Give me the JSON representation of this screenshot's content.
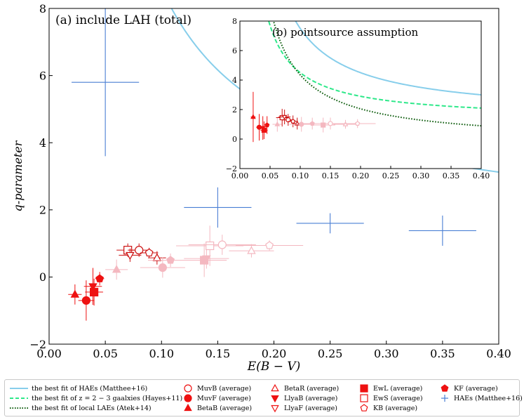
{
  "chart_data": [
    {
      "type": "scatter",
      "panel": "main",
      "title": "(a) include LAH (total)",
      "xlabel": "E(B − V)",
      "ylabel": "q-parameter",
      "xlim": [
        0.0,
        0.4
      ],
      "ylim": [
        -2,
        8
      ],
      "xticks": [
        "0.00",
        "0.05",
        "0.10",
        "0.15",
        "0.20",
        "0.25",
        "0.30",
        "0.35",
        "0.40"
      ],
      "yticks": [
        "−2",
        "0",
        "2",
        "4",
        "6",
        "8"
      ],
      "curves": [
        {
          "name": "HAE best fit",
          "color": "#87ceeb",
          "style": "solid",
          "a": 0.73,
          "c": 1.3
        }
      ],
      "haes": [
        {
          "x": 0.05,
          "y": 5.8,
          "xerr": 0.03,
          "yerr": 2.2
        },
        {
          "x": 0.15,
          "y": 2.07,
          "xerr": 0.03,
          "yerr": 0.6
        },
        {
          "x": 0.25,
          "y": 1.6,
          "xerr": 0.03,
          "yerr": 0.3
        },
        {
          "x": 0.35,
          "y": 1.38,
          "xerr": 0.03,
          "yerr": 0.45
        }
      ],
      "points": [
        {
          "x": 0.023,
          "y": -0.52,
          "xerr": 0.006,
          "yerr": 0.3,
          "marker": "triangle",
          "fill": true,
          "color": "#ee1111"
        },
        {
          "x": 0.033,
          "y": -0.7,
          "xerr": 0.007,
          "yerr": 0.6,
          "marker": "circle",
          "fill": true,
          "color": "#ee1111"
        },
        {
          "x": 0.039,
          "y": -0.28,
          "xerr": 0.008,
          "yerr": 0.55,
          "marker": "triangle-down",
          "fill": true,
          "color": "#ee1111"
        },
        {
          "x": 0.04,
          "y": -0.45,
          "xerr": 0.008,
          "yerr": 0.4,
          "marker": "square",
          "fill": true,
          "color": "#ee1111"
        },
        {
          "x": 0.045,
          "y": -0.05,
          "xerr": 0.004,
          "yerr": 0.2,
          "marker": "pentagon",
          "fill": true,
          "color": "#ee1111"
        },
        {
          "x": 0.06,
          "y": 0.22,
          "xerr": 0.01,
          "yerr": 0.3,
          "marker": "triangle",
          "fill": true,
          "color": "#f4b8c0"
        },
        {
          "x": 0.07,
          "y": 0.8,
          "xerr": 0.01,
          "yerr": 0.2,
          "marker": "square",
          "fill": false,
          "color": "#cc1111"
        },
        {
          "x": 0.072,
          "y": 0.65,
          "xerr": 0.01,
          "yerr": 0.2,
          "marker": "triangle-down",
          "fill": false,
          "color": "#cc1111"
        },
        {
          "x": 0.08,
          "y": 0.8,
          "xerr": 0.01,
          "yerr": 0.2,
          "marker": "circle",
          "fill": false,
          "color": "#cc1111"
        },
        {
          "x": 0.089,
          "y": 0.72,
          "xerr": 0.008,
          "yerr": 0.15,
          "marker": "pentagon",
          "fill": false,
          "color": "#cc1111"
        },
        {
          "x": 0.096,
          "y": 0.57,
          "xerr": 0.008,
          "yerr": 0.2,
          "marker": "triangle",
          "fill": false,
          "color": "#cc1111"
        },
        {
          "x": 0.101,
          "y": 0.28,
          "xerr": 0.02,
          "yerr": 0.3,
          "marker": "circle",
          "fill": true,
          "color": "#f4b8c0"
        },
        {
          "x": 0.108,
          "y": 0.5,
          "xerr": 0.02,
          "yerr": 0.2,
          "marker": "pentagon",
          "fill": true,
          "color": "#f4b8c0"
        },
        {
          "x": 0.138,
          "y": 0.5,
          "xerr": 0.02,
          "yerr": 0.5,
          "marker": "square",
          "fill": true,
          "color": "#f4b8c0"
        },
        {
          "x": 0.14,
          "y": 0.55,
          "xerr": 0.02,
          "yerr": 0.3,
          "marker": "triangle-down",
          "fill": true,
          "color": "#f4b8c0"
        },
        {
          "x": 0.143,
          "y": 0.93,
          "xerr": 0.03,
          "yerr": 0.6,
          "marker": "square",
          "fill": false,
          "color": "#f4b8c0"
        },
        {
          "x": 0.154,
          "y": 0.96,
          "xerr": 0.03,
          "yerr": 0.3,
          "marker": "circle",
          "fill": false,
          "color": "#f4b8c0"
        },
        {
          "x": 0.18,
          "y": 0.78,
          "xerr": 0.02,
          "yerr": 0.2,
          "marker": "triangle",
          "fill": false,
          "color": "#f4b8c0"
        },
        {
          "x": 0.196,
          "y": 0.94,
          "xerr": 0.03,
          "yerr": 0.15,
          "marker": "pentagon",
          "fill": false,
          "color": "#f4b8c0"
        }
      ]
    },
    {
      "type": "scatter",
      "panel": "inset",
      "title": "(b) pointsource assumption",
      "xlim": [
        0.0,
        0.4
      ],
      "ylim": [
        -2,
        8
      ],
      "xticks": [
        "0.00",
        "0.05",
        "0.10",
        "0.15",
        "0.20",
        "0.25",
        "0.30",
        "0.35",
        "0.40"
      ],
      "yticks": [
        "−2",
        "0",
        "2",
        "4",
        "6",
        "8"
      ],
      "curves": [
        {
          "name": "HAE best fit",
          "color": "#87ceeb",
          "style": "solid",
          "a": 0.6,
          "c": 1.5
        },
        {
          "name": "z=2-3 galaxies",
          "color": "#2ee88a",
          "style": "dashed",
          "a": 0.32,
          "c": 1.3
        },
        {
          "name": "local LAEs",
          "color": "#0a5a0a",
          "style": "dotted",
          "a": 0.46,
          "c": -0.25
        }
      ],
      "points": [
        {
          "x": 0.022,
          "y": 1.5,
          "xerr": 0.004,
          "yerr": 1.7,
          "marker": "triangle",
          "fill": true,
          "color": "#ee1111"
        },
        {
          "x": 0.032,
          "y": 0.8,
          "xerr": 0.005,
          "yerr": 0.9,
          "marker": "circle",
          "fill": true,
          "color": "#ee1111"
        },
        {
          "x": 0.038,
          "y": 0.75,
          "xerr": 0.006,
          "yerr": 0.8,
          "marker": "triangle-down",
          "fill": true,
          "color": "#ee1111"
        },
        {
          "x": 0.04,
          "y": 0.6,
          "xerr": 0.006,
          "yerr": 0.6,
          "marker": "square",
          "fill": true,
          "color": "#ee1111"
        },
        {
          "x": 0.045,
          "y": 0.95,
          "xerr": 0.004,
          "yerr": 0.6,
          "marker": "pentagon",
          "fill": true,
          "color": "#ee1111"
        },
        {
          "x": 0.062,
          "y": 1.0,
          "xerr": 0.008,
          "yerr": 0.5,
          "marker": "triangle",
          "fill": true,
          "color": "#f4b8c0"
        },
        {
          "x": 0.07,
          "y": 1.45,
          "xerr": 0.01,
          "yerr": 0.6,
          "marker": "square",
          "fill": false,
          "color": "#cc1111"
        },
        {
          "x": 0.074,
          "y": 1.5,
          "xerr": 0.01,
          "yerr": 0.5,
          "marker": "triangle-down",
          "fill": false,
          "color": "#cc1111"
        },
        {
          "x": 0.08,
          "y": 1.3,
          "xerr": 0.01,
          "yerr": 0.4,
          "marker": "circle",
          "fill": false,
          "color": "#cc1111"
        },
        {
          "x": 0.088,
          "y": 1.2,
          "xerr": 0.008,
          "yerr": 0.4,
          "marker": "pentagon",
          "fill": false,
          "color": "#cc1111"
        },
        {
          "x": 0.095,
          "y": 1.05,
          "xerr": 0.008,
          "yerr": 0.4,
          "marker": "triangle",
          "fill": false,
          "color": "#cc1111"
        },
        {
          "x": 0.102,
          "y": 1.0,
          "xerr": 0.02,
          "yerr": 0.5,
          "marker": "circle",
          "fill": true,
          "color": "#f4b8c0"
        },
        {
          "x": 0.12,
          "y": 1.05,
          "xerr": 0.02,
          "yerr": 0.4,
          "marker": "pentagon",
          "fill": true,
          "color": "#f4b8c0"
        },
        {
          "x": 0.138,
          "y": 0.95,
          "xerr": 0.02,
          "yerr": 0.5,
          "marker": "square",
          "fill": true,
          "color": "#f4b8c0"
        },
        {
          "x": 0.15,
          "y": 1.05,
          "xerr": 0.03,
          "yerr": 0.4,
          "marker": "circle",
          "fill": false,
          "color": "#f4b8c0"
        },
        {
          "x": 0.175,
          "y": 1.0,
          "xerr": 0.02,
          "yerr": 0.3,
          "marker": "triangle",
          "fill": false,
          "color": "#f4b8c0"
        },
        {
          "x": 0.195,
          "y": 1.05,
          "xerr": 0.03,
          "yerr": 0.3,
          "marker": "pentagon",
          "fill": false,
          "color": "#f4b8c0"
        }
      ]
    }
  ],
  "legend": [
    {
      "label": "the best fit of HAEs (Matthee+16)",
      "kind": "line",
      "color": "#87ceeb",
      "style": "solid"
    },
    {
      "label": "the best fit of z = 2 − 3 gaalxies (Hayes+11)",
      "kind": "line",
      "color": "#2ee88a",
      "style": "dashed"
    },
    {
      "label": "the best fit of local LAEs (Atek+14)",
      "kind": "line",
      "color": "#0a5a0a",
      "style": "dotted"
    },
    {
      "label": "MuvB (average)",
      "kind": "marker",
      "marker": "circle",
      "fill": false,
      "color": "#ee1111"
    },
    {
      "label": "MuvF (average)",
      "kind": "marker",
      "marker": "circle",
      "fill": true,
      "color": "#ee1111"
    },
    {
      "label": "BetaB (average)",
      "kind": "marker",
      "marker": "triangle",
      "fill": true,
      "color": "#ee1111"
    },
    {
      "label": "BetaR (average)",
      "kind": "marker",
      "marker": "triangle",
      "fill": false,
      "color": "#ee1111"
    },
    {
      "label": "LlyaB (average)",
      "kind": "marker",
      "marker": "triangle-down",
      "fill": true,
      "color": "#ee1111"
    },
    {
      "label": "LlyaF (average)",
      "kind": "marker",
      "marker": "triangle-down",
      "fill": false,
      "color": "#ee1111"
    },
    {
      "label": "EwL (average)",
      "kind": "marker",
      "marker": "square",
      "fill": true,
      "color": "#ee1111"
    },
    {
      "label": "EwS (average)",
      "kind": "marker",
      "marker": "square",
      "fill": false,
      "color": "#ee1111"
    },
    {
      "label": "KB (average)",
      "kind": "marker",
      "marker": "pentagon",
      "fill": false,
      "color": "#ee1111"
    },
    {
      "label": "KF (average)",
      "kind": "marker",
      "marker": "pentagon",
      "fill": true,
      "color": "#ee1111"
    },
    {
      "label": "HAEs (Matthee+16)",
      "kind": "marker",
      "marker": "plus",
      "fill": false,
      "color": "#4a7fd4"
    }
  ]
}
